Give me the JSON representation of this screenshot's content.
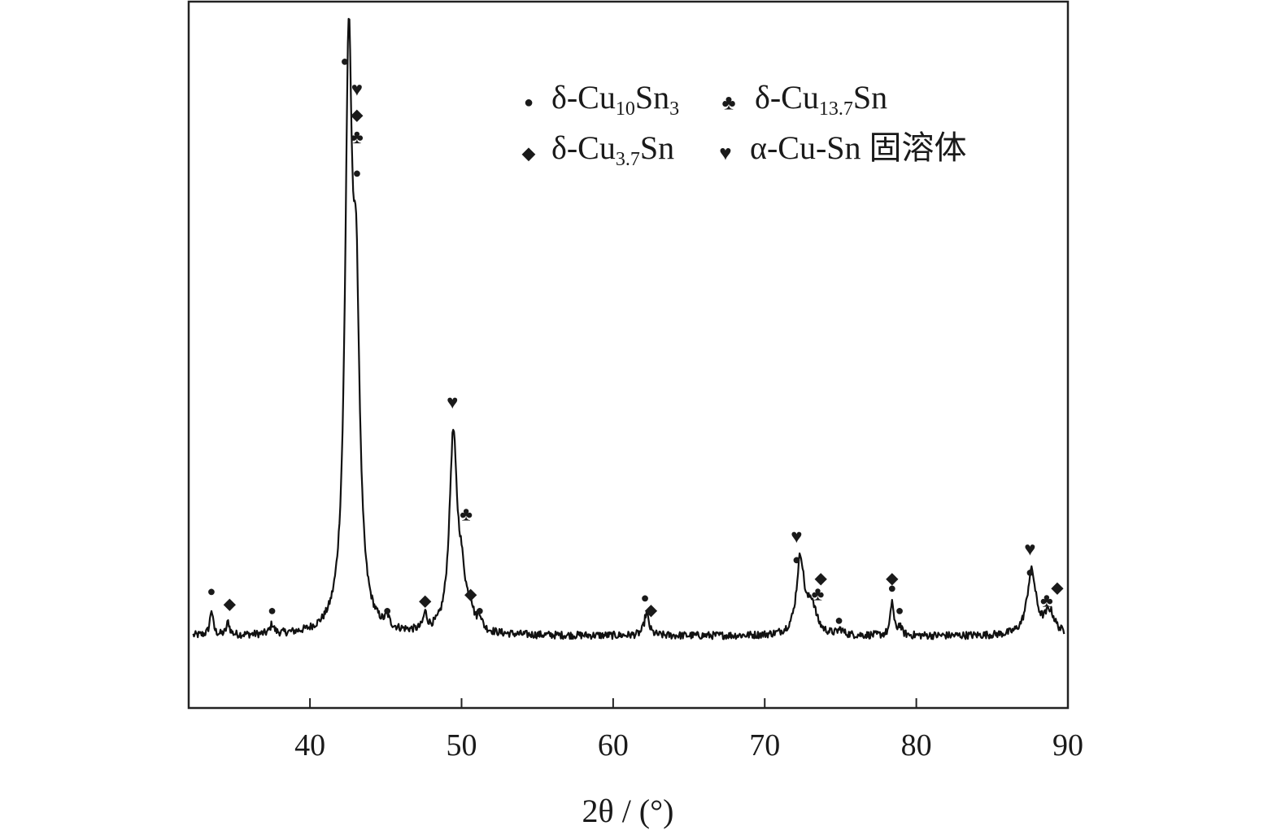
{
  "chart_data": {
    "type": "line",
    "title": "",
    "xlabel": "2θ / (°)",
    "ylabel": "",
    "xlim": [
      32,
      90
    ],
    "ylim": [
      0,
      100
    ],
    "y_ticks_shown": false,
    "grid": false,
    "legend_placement": "top-right",
    "x_ticks": [
      40,
      50,
      60,
      70,
      80,
      90
    ],
    "x_tick_labels": [
      "40",
      "50",
      "60",
      "70",
      "80",
      "90"
    ],
    "marker_styles": {
      "delta_Cu10Sn3": {
        "symbol": "●",
        "color": "#e0245e"
      },
      "delta_Cu13_7Sn": {
        "symbol": "♣",
        "color": "#111111"
      },
      "delta_Cu3_7Sn": {
        "symbol": "◆",
        "color": "#4caf50"
      },
      "alpha_CuSn": {
        "symbol": "♥",
        "color": "#2b2b9e"
      }
    },
    "legend": [
      {
        "key": "delta_Cu10Sn3",
        "prefix": "δ-Cu",
        "sub1": "10",
        "mid": "Sn",
        "sub2": "3",
        "suffix": ""
      },
      {
        "key": "delta_Cu13_7Sn",
        "prefix": "δ-Cu",
        "sub1": "13.7",
        "mid": "Sn",
        "sub2": "",
        "suffix": ""
      },
      {
        "key": "delta_Cu3_7Sn",
        "prefix": "δ-Cu",
        "sub1": "3.7",
        "mid": "Sn",
        "sub2": "",
        "suffix": ""
      },
      {
        "key": "alpha_CuSn",
        "prefix": "α-Cu-Sn 固溶体",
        "sub1": "",
        "mid": "",
        "sub2": "",
        "suffix": ""
      }
    ],
    "series": [
      {
        "line_color": "#111111",
        "baseline": 10.0,
        "peaks": [
          {
            "x": 33.5,
            "h": 4.0,
            "w": 0.12
          },
          {
            "x": 34.6,
            "h": 2.0,
            "w": 0.12
          },
          {
            "x": 37.5,
            "h": 1.5,
            "w": 0.15
          },
          {
            "x": 42.55,
            "h": 86.0,
            "w": 0.28
          },
          {
            "x": 43.05,
            "h": 45.0,
            "w": 0.28
          },
          {
            "x": 45.1,
            "h": 1.5,
            "w": 0.15
          },
          {
            "x": 47.6,
            "h": 2.5,
            "w": 0.15
          },
          {
            "x": 49.45,
            "h": 30.0,
            "w": 0.3
          },
          {
            "x": 50.0,
            "h": 7.0,
            "w": 0.35
          },
          {
            "x": 50.6,
            "h": 2.5,
            "w": 0.2
          },
          {
            "x": 51.2,
            "h": 2.0,
            "w": 0.15
          },
          {
            "x": 62.2,
            "h": 3.5,
            "w": 0.18
          },
          {
            "x": 72.35,
            "h": 12.0,
            "w": 0.3
          },
          {
            "x": 73.1,
            "h": 4.5,
            "w": 0.35
          },
          {
            "x": 75.0,
            "h": 0.8,
            "w": 0.2
          },
          {
            "x": 78.4,
            "h": 5.5,
            "w": 0.12
          },
          {
            "x": 78.9,
            "h": 1.5,
            "w": 0.15
          },
          {
            "x": 87.6,
            "h": 10.0,
            "w": 0.35
          },
          {
            "x": 88.8,
            "h": 3.5,
            "w": 0.4
          }
        ]
      }
    ],
    "annotations": [
      {
        "x": 33.5,
        "y": 17.0,
        "phase": "delta_Cu10Sn3"
      },
      {
        "x": 34.7,
        "y": 15.0,
        "phase": "delta_Cu3_7Sn"
      },
      {
        "x": 37.5,
        "y": 14.0,
        "phase": "delta_Cu10Sn3"
      },
      {
        "x": 42.3,
        "y": 100.0,
        "phase": "delta_Cu10Sn3"
      },
      {
        "x": 43.1,
        "y": 95.5,
        "phase": "alpha_CuSn"
      },
      {
        "x": 43.1,
        "y": 91.5,
        "phase": "delta_Cu3_7Sn"
      },
      {
        "x": 43.1,
        "y": 88.0,
        "phase": "delta_Cu13_7Sn"
      },
      {
        "x": 43.1,
        "y": 82.5,
        "phase": "delta_Cu10Sn3"
      },
      {
        "x": 45.1,
        "y": 14.0,
        "phase": "delta_Cu10Sn3"
      },
      {
        "x": 47.6,
        "y": 15.5,
        "phase": "delta_Cu3_7Sn"
      },
      {
        "x": 49.4,
        "y": 46.5,
        "phase": "alpha_CuSn"
      },
      {
        "x": 50.3,
        "y": 29.0,
        "phase": "delta_Cu13_7Sn"
      },
      {
        "x": 50.6,
        "y": 16.5,
        "phase": "delta_Cu3_7Sn"
      },
      {
        "x": 51.2,
        "y": 14.0,
        "phase": "delta_Cu10Sn3"
      },
      {
        "x": 62.1,
        "y": 16.0,
        "phase": "delta_Cu10Sn3"
      },
      {
        "x": 62.5,
        "y": 14.0,
        "phase": "delta_Cu3_7Sn"
      },
      {
        "x": 72.1,
        "y": 25.5,
        "phase": "alpha_CuSn"
      },
      {
        "x": 72.1,
        "y": 22.0,
        "phase": "delta_Cu10Sn3"
      },
      {
        "x": 73.7,
        "y": 19.0,
        "phase": "delta_Cu3_7Sn"
      },
      {
        "x": 73.5,
        "y": 16.5,
        "phase": "delta_Cu13_7Sn"
      },
      {
        "x": 74.9,
        "y": 12.5,
        "phase": "delta_Cu10Sn3"
      },
      {
        "x": 78.4,
        "y": 19.0,
        "phase": "delta_Cu3_7Sn"
      },
      {
        "x": 78.4,
        "y": 17.5,
        "phase": "delta_Cu10Sn3"
      },
      {
        "x": 78.9,
        "y": 14.0,
        "phase": "delta_Cu10Sn3"
      },
      {
        "x": 87.5,
        "y": 23.5,
        "phase": "alpha_CuSn"
      },
      {
        "x": 87.5,
        "y": 20.0,
        "phase": "delta_Cu10Sn3"
      },
      {
        "x": 89.3,
        "y": 17.5,
        "phase": "delta_Cu3_7Sn"
      },
      {
        "x": 88.6,
        "y": 15.5,
        "phase": "delta_Cu13_7Sn"
      }
    ]
  }
}
